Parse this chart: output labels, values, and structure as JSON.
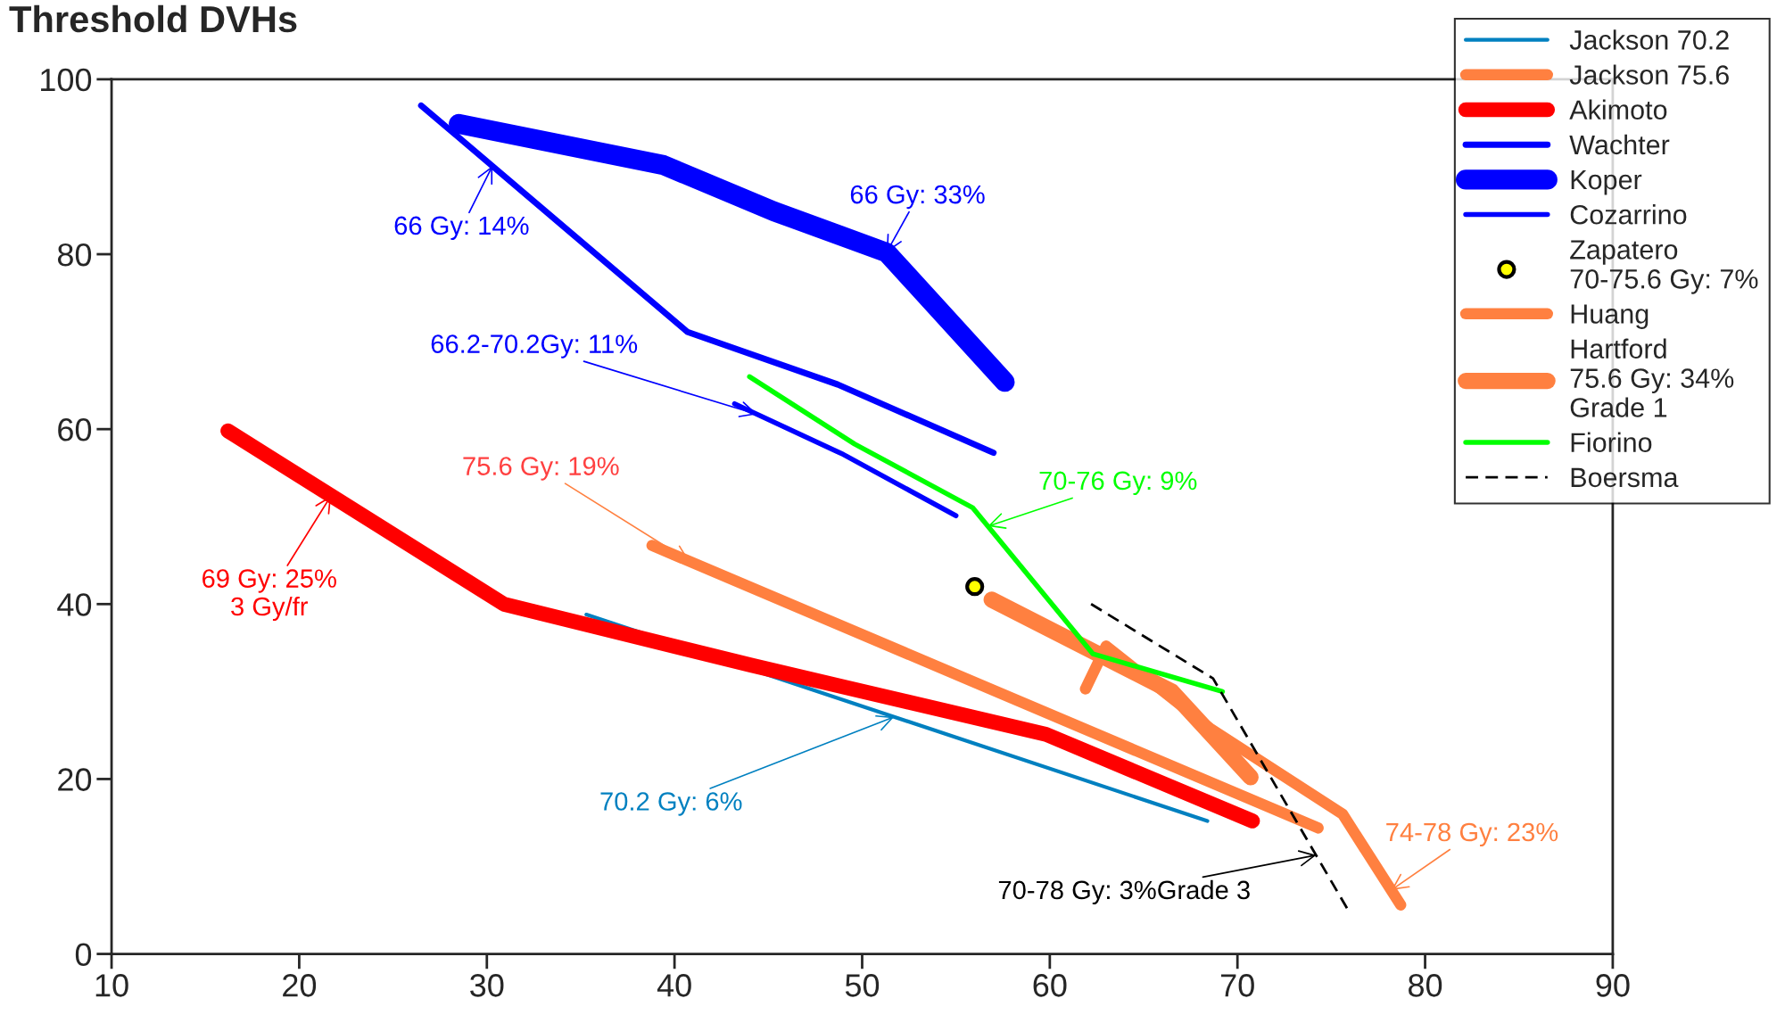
{
  "chart_data": {
    "type": "line",
    "title": "Threshold DVHs",
    "xlim": [
      10,
      90
    ],
    "xticks": [
      10,
      20,
      30,
      40,
      50,
      60,
      70,
      80,
      90
    ],
    "ylim": [
      0,
      100
    ],
    "yticks": [
      0,
      20,
      40,
      60,
      80,
      100
    ],
    "grid": false,
    "legend": "top right",
    "marker": "none",
    "line_style": "solid",
    "series": [
      {
        "name": "Jackson 70.2",
        "color": "#0080c0",
        "x": [
          35.3,
          68.4
        ],
        "values": [
          38.8,
          15.2
        ]
      },
      {
        "name": "Jackson 75.6",
        "color": "#ff8040",
        "x": [
          38.8,
          74.3
        ],
        "values": [
          46.7,
          14.4
        ]
      },
      {
        "name": "Akimoto",
        "color": "#ff0000",
        "x": [
          16.2,
          30.9,
          44.1,
          59.8,
          70.8
        ],
        "values": [
          59.8,
          40.0,
          33.0,
          25.1,
          15.2
        ]
      },
      {
        "name": "Wachter",
        "color": "#0000ff",
        "x": [
          26.5,
          40.7,
          48.7,
          57.0
        ],
        "values": [
          97.0,
          71.1,
          65.1,
          57.3
        ]
      },
      {
        "name": "Koper",
        "color": "#0000ff",
        "x": [
          28.5,
          39.4,
          45.3,
          51.3,
          57.6
        ],
        "values": [
          94.9,
          90.2,
          84.9,
          80.2,
          65.4
        ]
      },
      {
        "name": "Cozarrino",
        "color": "#0000ff",
        "x": [
          43.2,
          49.0,
          55.0
        ],
        "values": [
          62.9,
          57.1,
          50.1
        ]
      },
      {
        "name": "Zapatero\n70-75.6 Gy: 7%",
        "color": "#ffff00",
        "type": "scatter",
        "marker": "circle",
        "x": [
          56.0
        ],
        "values": [
          42.0
        ]
      },
      {
        "name": "Huang",
        "color": "#ff8040",
        "x": [
          61.9,
          63.0,
          68.6,
          75.6,
          78.7
        ],
        "values": [
          30.3,
          35.2,
          25.7,
          16.0,
          5.6
        ]
      },
      {
        "name": "Hartford\n75.6 Gy: 34%\nGrade 1",
        "color": "#ff8040",
        "x": [
          56.9,
          66.5,
          70.7
        ],
        "values": [
          40.5,
          30.0,
          20.2
        ]
      },
      {
        "name": "Fiorino",
        "color": "#00ff00",
        "x": [
          44.0,
          49.6,
          55.9,
          62.3,
          69.2
        ],
        "values": [
          66.0,
          58.3,
          51.0,
          34.3,
          30.0
        ]
      },
      {
        "name": "Boersma",
        "color": "#000000",
        "line_style": "dashed",
        "x": [
          62.2,
          68.7,
          75.9
        ],
        "values": [
          40.0,
          31.5,
          5.0
        ]
      }
    ],
    "annotations": [
      {
        "text": "66 Gy: 33%",
        "x": 51.3,
        "y": 80.2
      },
      {
        "text": "66 Gy: 14%",
        "x": 30.3,
        "y": 90.1
      },
      {
        "text": "66.2-70.2Gy: 11%",
        "x": 44.4,
        "y": 61.7
      },
      {
        "text": "75.6 Gy: 19%",
        "x": 40.8,
        "y": 44.9
      },
      {
        "text": "69 Gy: 25%\n3 Gy/fr",
        "x": 21.7,
        "y": 52.4
      },
      {
        "text": "70.2 Gy: 6%",
        "x": 51.7,
        "y": 27.1
      },
      {
        "text": "70-76 Gy: 9%",
        "x": 56.7,
        "y": 48.9
      },
      {
        "text": "74-78 Gy: 23%",
        "x": 78.2,
        "y": 7.3
      },
      {
        "text": "70-78 Gy: 3%Grade 3",
        "x": 74.2,
        "y": 11.3
      }
    ]
  }
}
